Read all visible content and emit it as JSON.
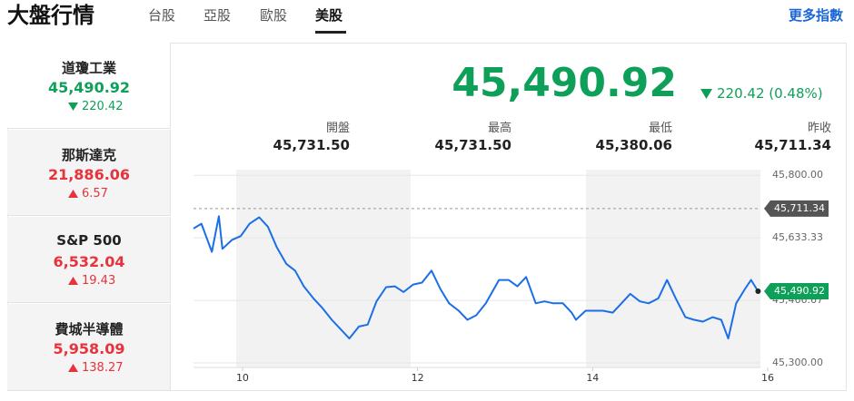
{
  "header": {
    "title": "大盤行情",
    "tabs": [
      "台股",
      "亞股",
      "歐股",
      "美股"
    ],
    "active_tab": 3,
    "more_link": "更多指數"
  },
  "indices": [
    {
      "name": "道瓊工業",
      "value": "45,490.92",
      "change": "220.42",
      "direction": "down"
    },
    {
      "name": "那斯達克",
      "value": "21,886.06",
      "change": "6.57",
      "direction": "up"
    },
    {
      "name": "S&P 500",
      "value": "6,532.04",
      "change": "19.43",
      "direction": "up"
    },
    {
      "name": "費城半導體",
      "value": "5,958.09",
      "change": "138.27",
      "direction": "up"
    }
  ],
  "selected_index": 0,
  "quote": {
    "price": "45,490.92",
    "change": "220.42 (0.48%)",
    "direction": "down",
    "stats": [
      {
        "label": "開盤",
        "value": "45,731.50"
      },
      {
        "label": "最高",
        "value": "45,731.50"
      },
      {
        "label": "最低",
        "value": "45,380.06"
      },
      {
        "label": "昨收",
        "value": "45,711.34"
      }
    ]
  },
  "chart_data": {
    "type": "line",
    "color": "#1a6fe8",
    "x": [
      9.44,
      9.53,
      9.65,
      9.73,
      9.77,
      9.88,
      9.98,
      10.08,
      10.19,
      10.29,
      10.39,
      10.5,
      10.6,
      10.7,
      10.81,
      10.91,
      11.02,
      11.12,
      11.22,
      11.33,
      11.43,
      11.53,
      11.64,
      11.74,
      11.84,
      11.95,
      12.05,
      12.16,
      12.26,
      12.36,
      12.47,
      12.57,
      12.67,
      12.78,
      12.93,
      13.04,
      13.14,
      13.24,
      13.35,
      13.45,
      13.55,
      13.66,
      13.76,
      13.81,
      13.92,
      14.02,
      14.12,
      14.23,
      14.33,
      14.43,
      14.54,
      14.64,
      14.75,
      14.85,
      14.95,
      15.06,
      15.16,
      15.26,
      15.37,
      15.47,
      15.55,
      15.64,
      15.74,
      15.81,
      15.89
    ],
    "values": [
      45658,
      45671,
      45596,
      45691,
      45604,
      45628,
      45638,
      45671,
      45688,
      45663,
      45609,
      45564,
      45546,
      45504,
      45472,
      45447,
      45415,
      45390,
      45365,
      45397,
      45402,
      45464,
      45502,
      45504,
      45489,
      45509,
      45514,
      45546,
      45497,
      45459,
      45439,
      45415,
      45427,
      45459,
      45521,
      45521,
      45504,
      45529,
      45459,
      45464,
      45459,
      45459,
      45434,
      45415,
      45439,
      45439,
      45439,
      45434,
      45459,
      45484,
      45464,
      45459,
      45472,
      45521,
      45472,
      45422,
      45415,
      45410,
      45422,
      45415,
      45365,
      45459,
      45497,
      45521,
      45491
    ],
    "xlim": [
      9.44,
      16
    ],
    "xticks": [
      10,
      12,
      14,
      16
    ],
    "ylim": [
      45288,
      45815
    ],
    "yticks": [
      {
        "value": 45800,
        "label": "45,800.00"
      },
      {
        "value": 45633.33,
        "label": "45,633.33"
      },
      {
        "value": 45466.67,
        "label": "45,466.67"
      },
      {
        "value": 45300,
        "label": "45,300.00"
      }
    ],
    "grid": true,
    "reference_value": {
      "value": 45711.34,
      "label": "45,711.34"
    },
    "last_value": {
      "value": 45490.92,
      "label": "45,490.92"
    }
  }
}
